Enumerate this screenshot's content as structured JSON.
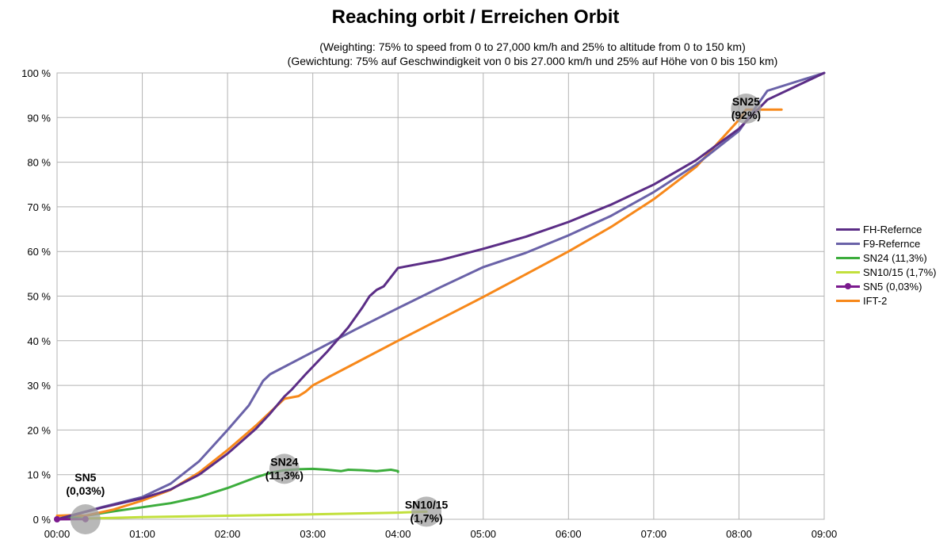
{
  "chart_data": {
    "type": "line",
    "title": "Reaching orbit / Erreichen Orbit",
    "subtitle_en": "(Weighting: 75% to speed from 0 to 27,000 km/h and 25% to altitude from 0 to 150 km)",
    "subtitle_de": "(Gewichtung: 75% auf Geschwindigkeit von 0 bis 27.000 km/h und 25% auf Höhe von 0 bis 150 km)",
    "xlim": [
      "00:00",
      "09:00"
    ],
    "ylim": [
      0,
      100
    ],
    "x_ticks": [
      "00:00",
      "01:00",
      "02:00",
      "03:00",
      "04:00",
      "05:00",
      "06:00",
      "07:00",
      "08:00",
      "09:00"
    ],
    "y_ticks": [
      "0 %",
      "10 %",
      "20 %",
      "30 %",
      "40 %",
      "50 %",
      "60 %",
      "70 %",
      "80 %",
      "90 %",
      "100 %"
    ],
    "grid": true,
    "legend_position": "right",
    "series": [
      {
        "name": "FH-Refernce",
        "color": "#5b2d86",
        "points": [
          [
            "00:00",
            0
          ],
          [
            "00:30",
            2.5
          ],
          [
            "01:00",
            4.7
          ],
          [
            "01:20",
            6.7
          ],
          [
            "01:40",
            10
          ],
          [
            "02:00",
            14.7
          ],
          [
            "02:20",
            20.3
          ],
          [
            "02:30",
            23.7
          ],
          [
            "02:40",
            27.5
          ],
          [
            "02:45",
            29
          ],
          [
            "02:55",
            32.5
          ],
          [
            "03:10",
            37.5
          ],
          [
            "03:25",
            43
          ],
          [
            "03:35",
            47.5
          ],
          [
            "03:40",
            50
          ],
          [
            "03:45",
            51.4
          ],
          [
            "03:50",
            52.2
          ],
          [
            "04:00",
            56.3
          ],
          [
            "04:30",
            58.1
          ],
          [
            "05:00",
            60.6
          ],
          [
            "05:30",
            63.3
          ],
          [
            "06:00",
            66.6
          ],
          [
            "06:30",
            70.5
          ],
          [
            "07:00",
            75
          ],
          [
            "07:30",
            80.5
          ],
          [
            "08:00",
            87.5
          ],
          [
            "08:20",
            94
          ],
          [
            "09:00",
            100
          ]
        ]
      },
      {
        "name": "F9-Refernce",
        "color": "#6a62a8",
        "points": [
          [
            "00:00",
            0
          ],
          [
            "00:30",
            2.6
          ],
          [
            "01:00",
            5
          ],
          [
            "01:20",
            8
          ],
          [
            "01:40",
            13
          ],
          [
            "02:00",
            20
          ],
          [
            "02:15",
            25.5
          ],
          [
            "02:25",
            31
          ],
          [
            "02:30",
            32.5
          ],
          [
            "03:00",
            37.5
          ],
          [
            "03:30",
            42.5
          ],
          [
            "04:00",
            47.3
          ],
          [
            "04:30",
            52
          ],
          [
            "05:00",
            56.5
          ],
          [
            "05:30",
            59.7
          ],
          [
            "06:00",
            63.6
          ],
          [
            "06:30",
            68
          ],
          [
            "07:00",
            73.3
          ],
          [
            "07:30",
            79.5
          ],
          [
            "08:00",
            87
          ],
          [
            "08:20",
            96
          ],
          [
            "09:00",
            100
          ]
        ]
      },
      {
        "name": "SN24 (11,3%)",
        "color": "#3cad3c",
        "points": [
          [
            "00:00",
            0
          ],
          [
            "00:20",
            0.8
          ],
          [
            "00:40",
            1.8
          ],
          [
            "01:00",
            2.7
          ],
          [
            "01:20",
            3.6
          ],
          [
            "01:40",
            5
          ],
          [
            "02:00",
            7
          ],
          [
            "02:20",
            9.4
          ],
          [
            "02:30",
            10.4
          ],
          [
            "02:40",
            11
          ],
          [
            "02:50",
            11.2
          ],
          [
            "03:00",
            11.3
          ],
          [
            "03:10",
            11.1
          ],
          [
            "03:20",
            10.8
          ],
          [
            "03:25",
            11.1
          ],
          [
            "03:35",
            11
          ],
          [
            "03:45",
            10.8
          ],
          [
            "03:55",
            11.1
          ],
          [
            "04:00",
            10.8
          ],
          [
            "04:00",
            10.6
          ]
        ]
      },
      {
        "name": "SN10/15 (1,7%)",
        "color": "#c2e03c",
        "points": [
          [
            "00:00",
            0
          ],
          [
            "01:00",
            0.5
          ],
          [
            "02:00",
            0.8
          ],
          [
            "03:00",
            1.1
          ],
          [
            "04:00",
            1.5
          ],
          [
            "04:20",
            1.7
          ]
        ]
      },
      {
        "name": "SN5 (0,03%)",
        "color": "#7b1a8e",
        "marker": true,
        "points": [
          [
            "00:00",
            0
          ],
          [
            "00:20",
            0.03
          ]
        ]
      },
      {
        "name": "IFT-2",
        "color": "#f7881a",
        "points": [
          [
            "00:00",
            0.8
          ],
          [
            "00:10",
            0.9
          ],
          [
            "00:20",
            0.8
          ],
          [
            "00:40",
            2.2
          ],
          [
            "01:00",
            4.2
          ],
          [
            "01:20",
            6.6
          ],
          [
            "01:40",
            10.5
          ],
          [
            "02:00",
            15.5
          ],
          [
            "02:20",
            21
          ],
          [
            "02:35",
            25.5
          ],
          [
            "02:40",
            27
          ],
          [
            "02:50",
            27.6
          ],
          [
            "02:55",
            28.6
          ],
          [
            "03:00",
            30
          ],
          [
            "03:30",
            35
          ],
          [
            "04:00",
            40
          ],
          [
            "04:30",
            44.9
          ],
          [
            "05:00",
            49.8
          ],
          [
            "05:30",
            54.9
          ],
          [
            "06:00",
            60
          ],
          [
            "06:30",
            65.5
          ],
          [
            "07:00",
            71.7
          ],
          [
            "07:30",
            79
          ],
          [
            "08:00",
            89.5
          ],
          [
            "08:05",
            91.8
          ],
          [
            "08:30",
            91.8
          ]
        ]
      }
    ],
    "annotations": [
      {
        "line1": "SN5",
        "line2": "(0,03%)",
        "x": "00:20",
        "y": 0,
        "label_side": "above"
      },
      {
        "line1": "SN24",
        "line2": "(11,3%)",
        "x": "02:40",
        "y": 11.3,
        "label_side": "center"
      },
      {
        "line1": "SN10/15",
        "line2": "(1,7%)",
        "x": "04:20",
        "y": 1.7,
        "label_side": "center"
      },
      {
        "line1": "SN25",
        "line2": "(92%)",
        "x": "08:05",
        "y": 92,
        "label_side": "center"
      }
    ]
  }
}
